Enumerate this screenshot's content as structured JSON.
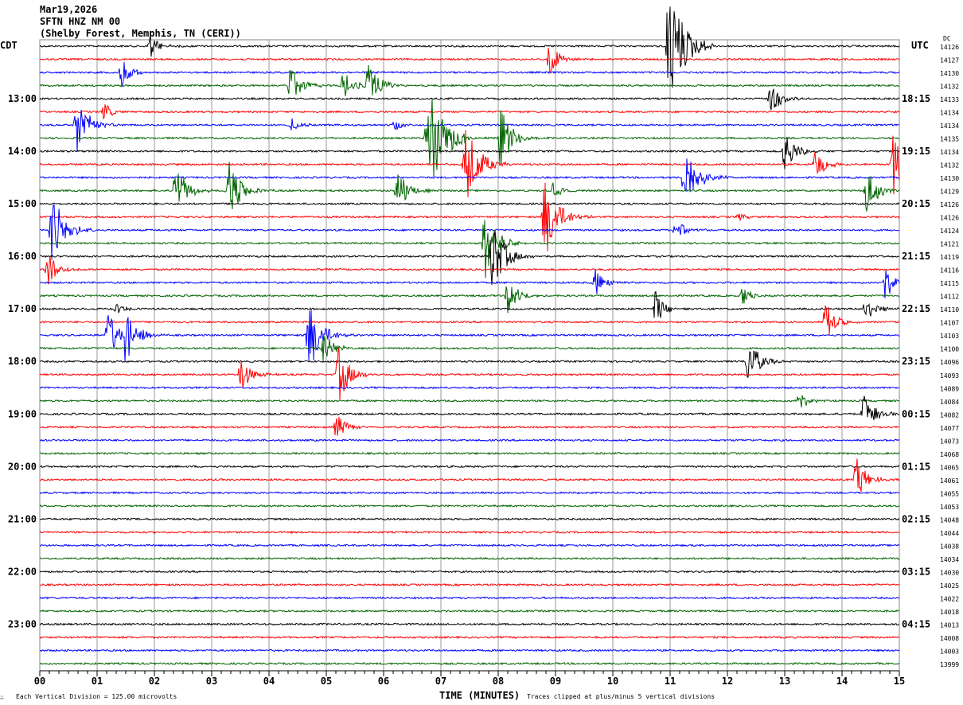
{
  "header": {
    "date": "Mar19,2026",
    "station": "SFTN HNZ NM 00",
    "location": "(Shelby Forest, Memphis, TN (CERI))"
  },
  "left_zone": "CDT",
  "right_zone": "UTC",
  "dc_label": "DC",
  "footer": {
    "scale": "Each Vertical Division =  125.00 microvolts",
    "xlabel": "TIME (MINUTES)",
    "clip_note": "Traces clipped at plus/minus 5 vertical divisions",
    "corner_mark": "∴"
  },
  "chart_data": {
    "type": "line",
    "title": "SFTN HNZ NM 00 helicorder",
    "xlabel": "TIME (MINUTES)",
    "xlim": [
      0,
      15
    ],
    "x_ticks": [
      "00",
      "01",
      "02",
      "03",
      "04",
      "05",
      "06",
      "07",
      "08",
      "09",
      "10",
      "11",
      "12",
      "13",
      "14",
      "15"
    ],
    "trace_count": 48,
    "trace_colors": [
      "#000000",
      "#ff0000",
      "#0000ff",
      "#006400"
    ],
    "clip_divisions": 5,
    "left_hour_labels": [
      "13:00",
      "14:00",
      "15:00",
      "16:00",
      "17:00",
      "18:00",
      "19:00",
      "20:00",
      "21:00",
      "22:00",
      "23:00"
    ],
    "right_hour_labels": [
      "18:15",
      "19:15",
      "20:15",
      "21:15",
      "22:15",
      "23:15",
      "00:15",
      "01:15",
      "02:15",
      "03:15",
      "04:15"
    ],
    "hour_label_every_traces": 4,
    "hour_label_first_trace": 4,
    "dc_values": [
      14126,
      14127,
      14130,
      14132,
      14133,
      14134,
      14134,
      14135,
      14134,
      14132,
      14130,
      14129,
      14126,
      14126,
      14124,
      14121,
      14119,
      14116,
      14115,
      14112,
      14110,
      14107,
      14103,
      14100,
      14096,
      14093,
      14089,
      14084,
      14082,
      14077,
      14073,
      14068,
      14065,
      14061,
      14055,
      14053,
      14048,
      14044,
      14038,
      14034,
      14030,
      14025,
      14022,
      14018,
      14013,
      14008,
      14003,
      13999
    ],
    "events": [
      {
        "trace": 0,
        "minute": 1.92,
        "amp": 1.0
      },
      {
        "trace": 0,
        "minute": 10.97,
        "amp": 5
      },
      {
        "trace": 1,
        "minute": 8.89,
        "amp": 1.5
      },
      {
        "trace": 2,
        "minute": 1.43,
        "amp": 1.2
      },
      {
        "trace": 3,
        "minute": 4.36,
        "amp": 1.8
      },
      {
        "trace": 3,
        "minute": 5.3,
        "amp": 1.3
      },
      {
        "trace": 3,
        "minute": 5.72,
        "amp": 2.0
      },
      {
        "trace": 4,
        "minute": 12.75,
        "amp": 1.5
      },
      {
        "trace": 5,
        "minute": 1.12,
        "amp": 0.7
      },
      {
        "trace": 6,
        "minute": 0.64,
        "amp": 2.5
      },
      {
        "trace": 6,
        "minute": 4.4,
        "amp": 0.6
      },
      {
        "trace": 6,
        "minute": 6.2,
        "amp": 0.4
      },
      {
        "trace": 7,
        "minute": 6.76,
        "amp": 5
      },
      {
        "trace": 7,
        "minute": 8.04,
        "amp": 2.5
      },
      {
        "trace": 8,
        "minute": 13.0,
        "amp": 1.8
      },
      {
        "trace": 9,
        "minute": 7.42,
        "amp": 3.5
      },
      {
        "trace": 9,
        "minute": 13.53,
        "amp": 1.3
      },
      {
        "trace": 9,
        "minute": 14.89,
        "amp": 2.5
      },
      {
        "trace": 10,
        "minute": 11.25,
        "amp": 3.0
      },
      {
        "trace": 11,
        "minute": 2.35,
        "amp": 2.3
      },
      {
        "trace": 11,
        "minute": 3.29,
        "amp": 2.5
      },
      {
        "trace": 11,
        "minute": 6.24,
        "amp": 1.8
      },
      {
        "trace": 11,
        "minute": 8.96,
        "amp": 0.6
      },
      {
        "trace": 11,
        "minute": 14.42,
        "amp": 2.0
      },
      {
        "trace": 13,
        "minute": 8.8,
        "amp": 3.5
      },
      {
        "trace": 13,
        "minute": 12.2,
        "amp": 0.3
      },
      {
        "trace": 14,
        "minute": 0.21,
        "amp": 3.0
      },
      {
        "trace": 14,
        "minute": 11.1,
        "amp": 0.9
      },
      {
        "trace": 15,
        "minute": 7.76,
        "amp": 3.0
      },
      {
        "trace": 16,
        "minute": 7.89,
        "amp": 3.0
      },
      {
        "trace": 17,
        "minute": 0.14,
        "amp": 1.4
      },
      {
        "trace": 18,
        "minute": 9.69,
        "amp": 1.2
      },
      {
        "trace": 18,
        "minute": 14.75,
        "amp": 1.4
      },
      {
        "trace": 19,
        "minute": 8.17,
        "amp": 1.6
      },
      {
        "trace": 19,
        "minute": 12.25,
        "amp": 0.9
      },
      {
        "trace": 20,
        "minute": 1.32,
        "amp": 0.5
      },
      {
        "trace": 20,
        "minute": 10.74,
        "amp": 1.4
      },
      {
        "trace": 20,
        "minute": 14.4,
        "amp": 1.3
      },
      {
        "trace": 21,
        "minute": 13.71,
        "amp": 1.6
      },
      {
        "trace": 22,
        "minute": 1.19,
        "amp": 2.0
      },
      {
        "trace": 22,
        "minute": 1.49,
        "amp": 2.3
      },
      {
        "trace": 22,
        "minute": 4.69,
        "amp": 3.0
      },
      {
        "trace": 23,
        "minute": 4.96,
        "amp": 1.4
      },
      {
        "trace": 24,
        "minute": 12.36,
        "amp": 2.0
      },
      {
        "trace": 25,
        "minute": 3.5,
        "amp": 1.5
      },
      {
        "trace": 25,
        "minute": 5.21,
        "amp": 2.3
      },
      {
        "trace": 27,
        "minute": 13.22,
        "amp": 1.0
      },
      {
        "trace": 28,
        "minute": 14.38,
        "amp": 1.8
      },
      {
        "trace": 29,
        "minute": 5.18,
        "amp": 1.1
      },
      {
        "trace": 33,
        "minute": 14.25,
        "amp": 1.8
      }
    ]
  }
}
